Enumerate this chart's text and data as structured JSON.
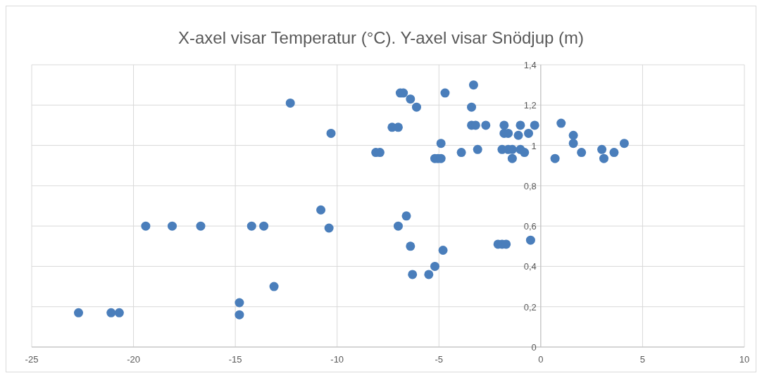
{
  "chart_data": {
    "type": "scatter",
    "title": "X-axel visar Temperatur (°C). Y-axel visar Snödjup (m)",
    "x": [
      -22.7,
      -21.1,
      -20.7,
      -19.4,
      -18.1,
      -16.7,
      -14.2,
      -13.6,
      -10.4,
      -10.8,
      -14.8,
      -14.8,
      -13.1,
      -12.3,
      -10.3,
      -8.1,
      -7.9,
      -7.3,
      -7.0,
      -6.9,
      -6.75,
      -6.4,
      -6.1,
      -4.7,
      -7.0,
      -6.6,
      -6.4,
      -6.3,
      -5.5,
      -5.2,
      -4.8,
      -4.9,
      -5.2,
      -5.05,
      -4.9,
      -3.9,
      -3.3,
      -3.4,
      -3.4,
      -3.2,
      -3.1,
      -2.7,
      -1.8,
      -1.0,
      -0.3,
      -1.8,
      -1.6,
      -1.1,
      -0.6,
      -1.9,
      -1.6,
      -1.4,
      -1.4,
      -1.0,
      -0.8,
      -2.1,
      -1.9,
      -1.7,
      -0.5,
      0.7,
      1.0,
      1.6,
      1.6,
      2.0,
      3.0,
      3.1,
      3.6,
      4.1
    ],
    "values": [
      0.17,
      0.17,
      0.17,
      0.6,
      0.6,
      0.6,
      0.6,
      0.6,
      0.59,
      0.68,
      0.22,
      0.16,
      0.3,
      1.21,
      1.06,
      0.965,
      0.965,
      1.09,
      1.09,
      1.26,
      1.26,
      1.23,
      1.19,
      1.26,
      0.6,
      0.65,
      0.5,
      0.36,
      0.36,
      0.4,
      0.48,
      1.01,
      0.935,
      0.935,
      0.935,
      0.965,
      1.3,
      1.19,
      1.1,
      1.1,
      0.98,
      1.1,
      1.1,
      1.1,
      1.1,
      1.06,
      1.06,
      1.05,
      1.06,
      0.98,
      0.98,
      0.98,
      0.935,
      0.98,
      0.965,
      0.51,
      0.51,
      0.51,
      0.53,
      0.935,
      1.11,
      1.05,
      1.01,
      0.965,
      0.98,
      0.935,
      0.965,
      1.01
    ],
    "color": "#4a7ebb",
    "marker": "circle",
    "xlim": [
      -25,
      10
    ],
    "xticks": [
      -25,
      -20,
      -15,
      -10,
      -5,
      0,
      5,
      10
    ],
    "ylim": [
      0,
      1.4
    ],
    "yticks": [
      {
        "value": 0,
        "label": "0"
      },
      {
        "value": 0.2,
        "label": "0,2"
      },
      {
        "value": 0.4,
        "label": "0,4"
      },
      {
        "value": 0.6,
        "label": "0,6"
      },
      {
        "value": 0.8,
        "label": "0,8"
      },
      {
        "value": 1,
        "label": "1"
      },
      {
        "value": 1.2,
        "label": "1,2"
      },
      {
        "value": 1.4,
        "label": "1,4"
      }
    ],
    "grid": true
  }
}
